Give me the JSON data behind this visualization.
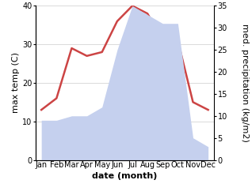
{
  "months": [
    "Jan",
    "Feb",
    "Mar",
    "Apr",
    "May",
    "Jun",
    "Jul",
    "Aug",
    "Sep",
    "Oct",
    "Nov",
    "Dec"
  ],
  "temperature": [
    13,
    16,
    29,
    27,
    28,
    36,
    40,
    38,
    31,
    31,
    15,
    13
  ],
  "precipitation": [
    9,
    9,
    10,
    10,
    12,
    25,
    35,
    33,
    31,
    31,
    5,
    3
  ],
  "temp_color": "#cc4444",
  "precip_color_fill": "#c5d0ee",
  "temp_ylim": [
    0,
    40
  ],
  "precip_ylim": [
    0,
    35
  ],
  "temp_ylabel": "max temp (C)",
  "precip_ylabel": "med. precipitation (kg/m2)",
  "xlabel": "date (month)",
  "xlabel_fontsize": 8,
  "ylabel_fontsize": 8,
  "tick_fontsize": 7,
  "temp_yticks": [
    0,
    10,
    20,
    30,
    40
  ],
  "precip_yticks": [
    0,
    5,
    10,
    15,
    20,
    25,
    30,
    35
  ],
  "line_width": 1.8,
  "fig_width": 3.18,
  "fig_height": 2.47,
  "dpi": 100
}
